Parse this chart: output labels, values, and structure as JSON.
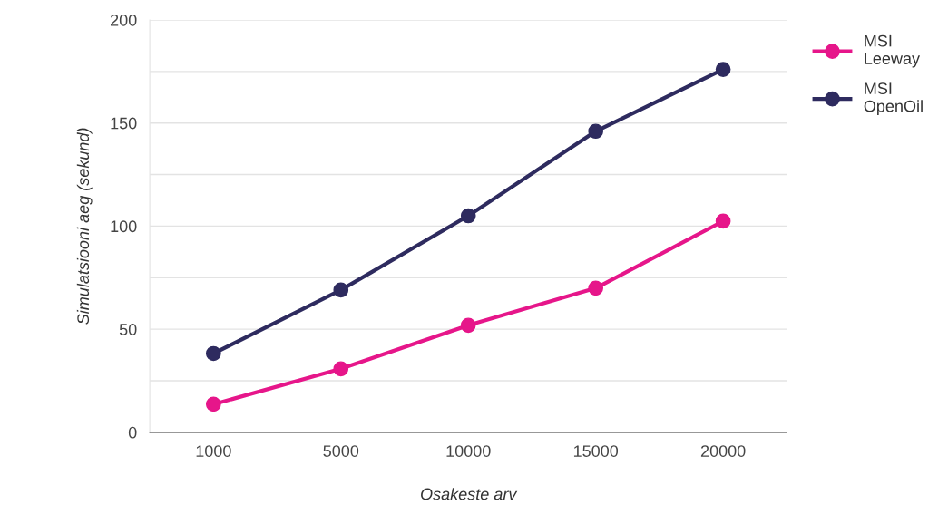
{
  "chart_data": {
    "type": "line",
    "xlabel": "Osakeste arv",
    "ylabel": "Simulatsiooni aeg (sekund)",
    "categories": [
      "1000",
      "5000",
      "10000",
      "15000",
      "20000"
    ],
    "series": [
      {
        "name": "MSI Leeway",
        "color": "#e6168a",
        "values": [
          13.6,
          30.8,
          51.9,
          69.9,
          102.4
        ]
      },
      {
        "name": "MSI OpenOil",
        "color": "#2e2b5f",
        "values": [
          38.2,
          69,
          105,
          146,
          176
        ]
      }
    ],
    "ylim": [
      0,
      200
    ],
    "yticks": [
      0,
      {
        "value": 25,
        "label": null
      },
      50,
      {
        "value": 75,
        "label": null
      },
      100,
      {
        "value": 125,
        "label": null
      },
      150,
      {
        "value": 175,
        "label": null
      },
      200
    ],
    "grid": "y",
    "legend": "top right",
    "marker": "circle",
    "line_style": "solid"
  }
}
